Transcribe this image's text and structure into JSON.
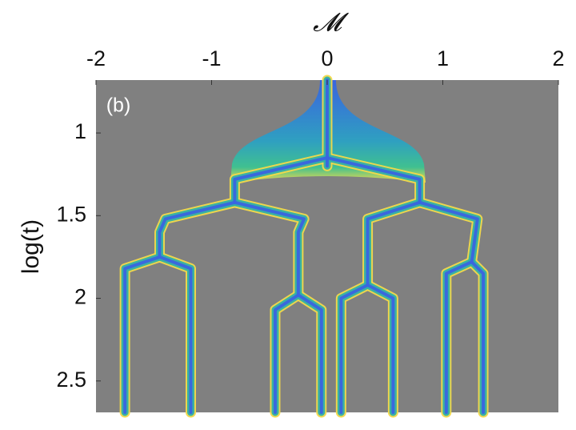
{
  "chart_data": {
    "type": "tree",
    "xlabel": "𝓜",
    "ylabel": "log(t)",
    "annotation": "(b)",
    "xlim": [
      -2,
      2
    ],
    "xticks": [
      -2,
      -1,
      0,
      1,
      2
    ],
    "ylim": [
      0.68,
      2.69
    ],
    "yticks": [
      1,
      1.5,
      2,
      2.5
    ],
    "y_reversed": true,
    "x_axis_position": "top",
    "background": "#808080",
    "colors": [
      "#f2d94a",
      "#2fb0a8",
      "#3a64e0"
    ],
    "series": [
      {
        "x": [
          0,
          0
        ],
        "y": [
          0.68,
          1.2
        ]
      },
      {
        "x": [
          0,
          -0.8,
          -0.8
        ],
        "y": [
          1.15,
          1.28,
          1.42
        ]
      },
      {
        "x": [
          0,
          0.8,
          0.8
        ],
        "y": [
          1.15,
          1.28,
          1.42
        ]
      },
      {
        "x": [
          -0.8,
          -1.4,
          -1.45,
          -1.45
        ],
        "y": [
          1.42,
          1.52,
          1.6,
          1.75
        ]
      },
      {
        "x": [
          -0.8,
          -0.2,
          -0.25,
          -0.25
        ],
        "y": [
          1.42,
          1.52,
          1.6,
          1.98
        ]
      },
      {
        "x": [
          0.8,
          0.35,
          0.35
        ],
        "y": [
          1.42,
          1.52,
          1.92
        ]
      },
      {
        "x": [
          0.8,
          1.3,
          1.25
        ],
        "y": [
          1.42,
          1.52,
          1.78
        ]
      },
      {
        "x": [
          -1.45,
          -1.75,
          -1.75
        ],
        "y": [
          1.75,
          1.82,
          2.69
        ]
      },
      {
        "x": [
          -1.45,
          -1.18,
          -1.18
        ],
        "y": [
          1.75,
          1.82,
          2.69
        ]
      },
      {
        "x": [
          -0.25,
          -0.45,
          -0.45
        ],
        "y": [
          1.98,
          2.07,
          2.69
        ]
      },
      {
        "x": [
          -0.25,
          -0.05,
          -0.05
        ],
        "y": [
          1.98,
          2.07,
          2.69
        ]
      },
      {
        "x": [
          0.35,
          0.12,
          0.12
        ],
        "y": [
          1.92,
          2.0,
          2.69
        ]
      },
      {
        "x": [
          0.35,
          0.57,
          0.57
        ],
        "y": [
          1.92,
          2.0,
          2.69
        ]
      },
      {
        "x": [
          1.25,
          1.03,
          1.03
        ],
        "y": [
          1.78,
          1.85,
          2.69
        ]
      },
      {
        "x": [
          1.25,
          1.35,
          1.35
        ],
        "y": [
          1.78,
          1.85,
          2.69
        ]
      }
    ]
  }
}
